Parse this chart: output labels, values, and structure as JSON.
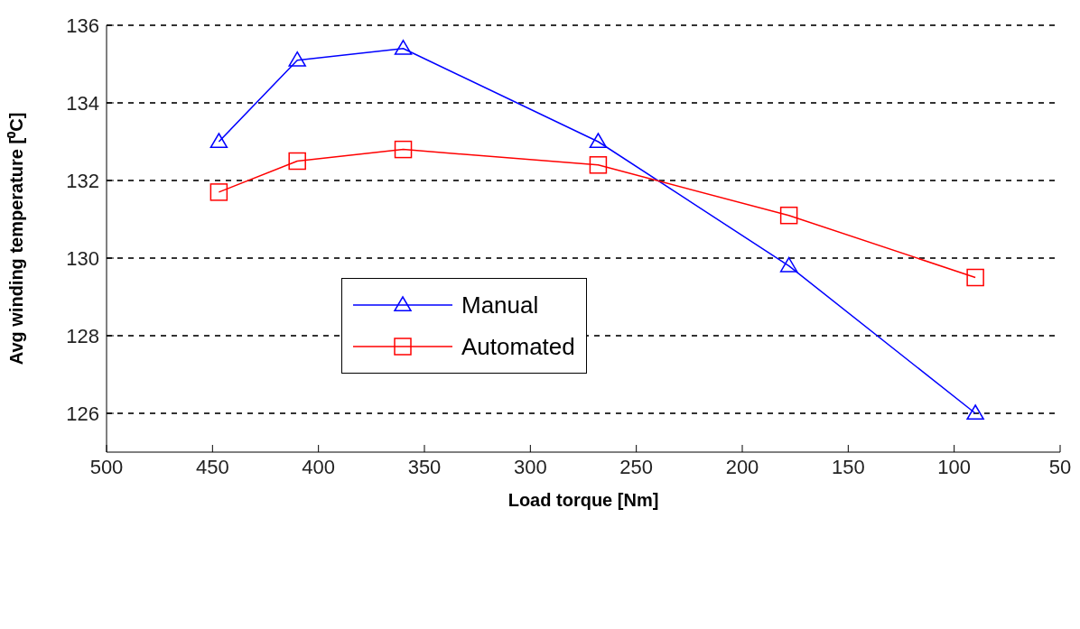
{
  "chart_data": {
    "type": "line",
    "xlabel": "Load torque [Nm]",
    "ylabel": "Avg winding temperature [⁰C]",
    "xlim": [
      500,
      50
    ],
    "xticks": [
      500,
      450,
      400,
      350,
      300,
      250,
      200,
      150,
      100,
      50
    ],
    "ylim": [
      125,
      136
    ],
    "yticks": [
      126,
      128,
      130,
      132,
      134,
      136
    ],
    "grid": "y",
    "legend": "left",
    "series": [
      {
        "name": "Manual",
        "color": "#0000ff",
        "marker": "triangle",
        "x": [
          447,
          410,
          360,
          268,
          178,
          90
        ],
        "values": [
          133,
          135.1,
          135.4,
          133,
          129.8,
          126
        ]
      },
      {
        "name": "Automated",
        "color": "#ff0000",
        "marker": "square",
        "x": [
          447,
          410,
          360,
          268,
          178,
          90
        ],
        "values": [
          131.7,
          132.5,
          132.8,
          132.4,
          131.1,
          129.5
        ]
      }
    ]
  }
}
